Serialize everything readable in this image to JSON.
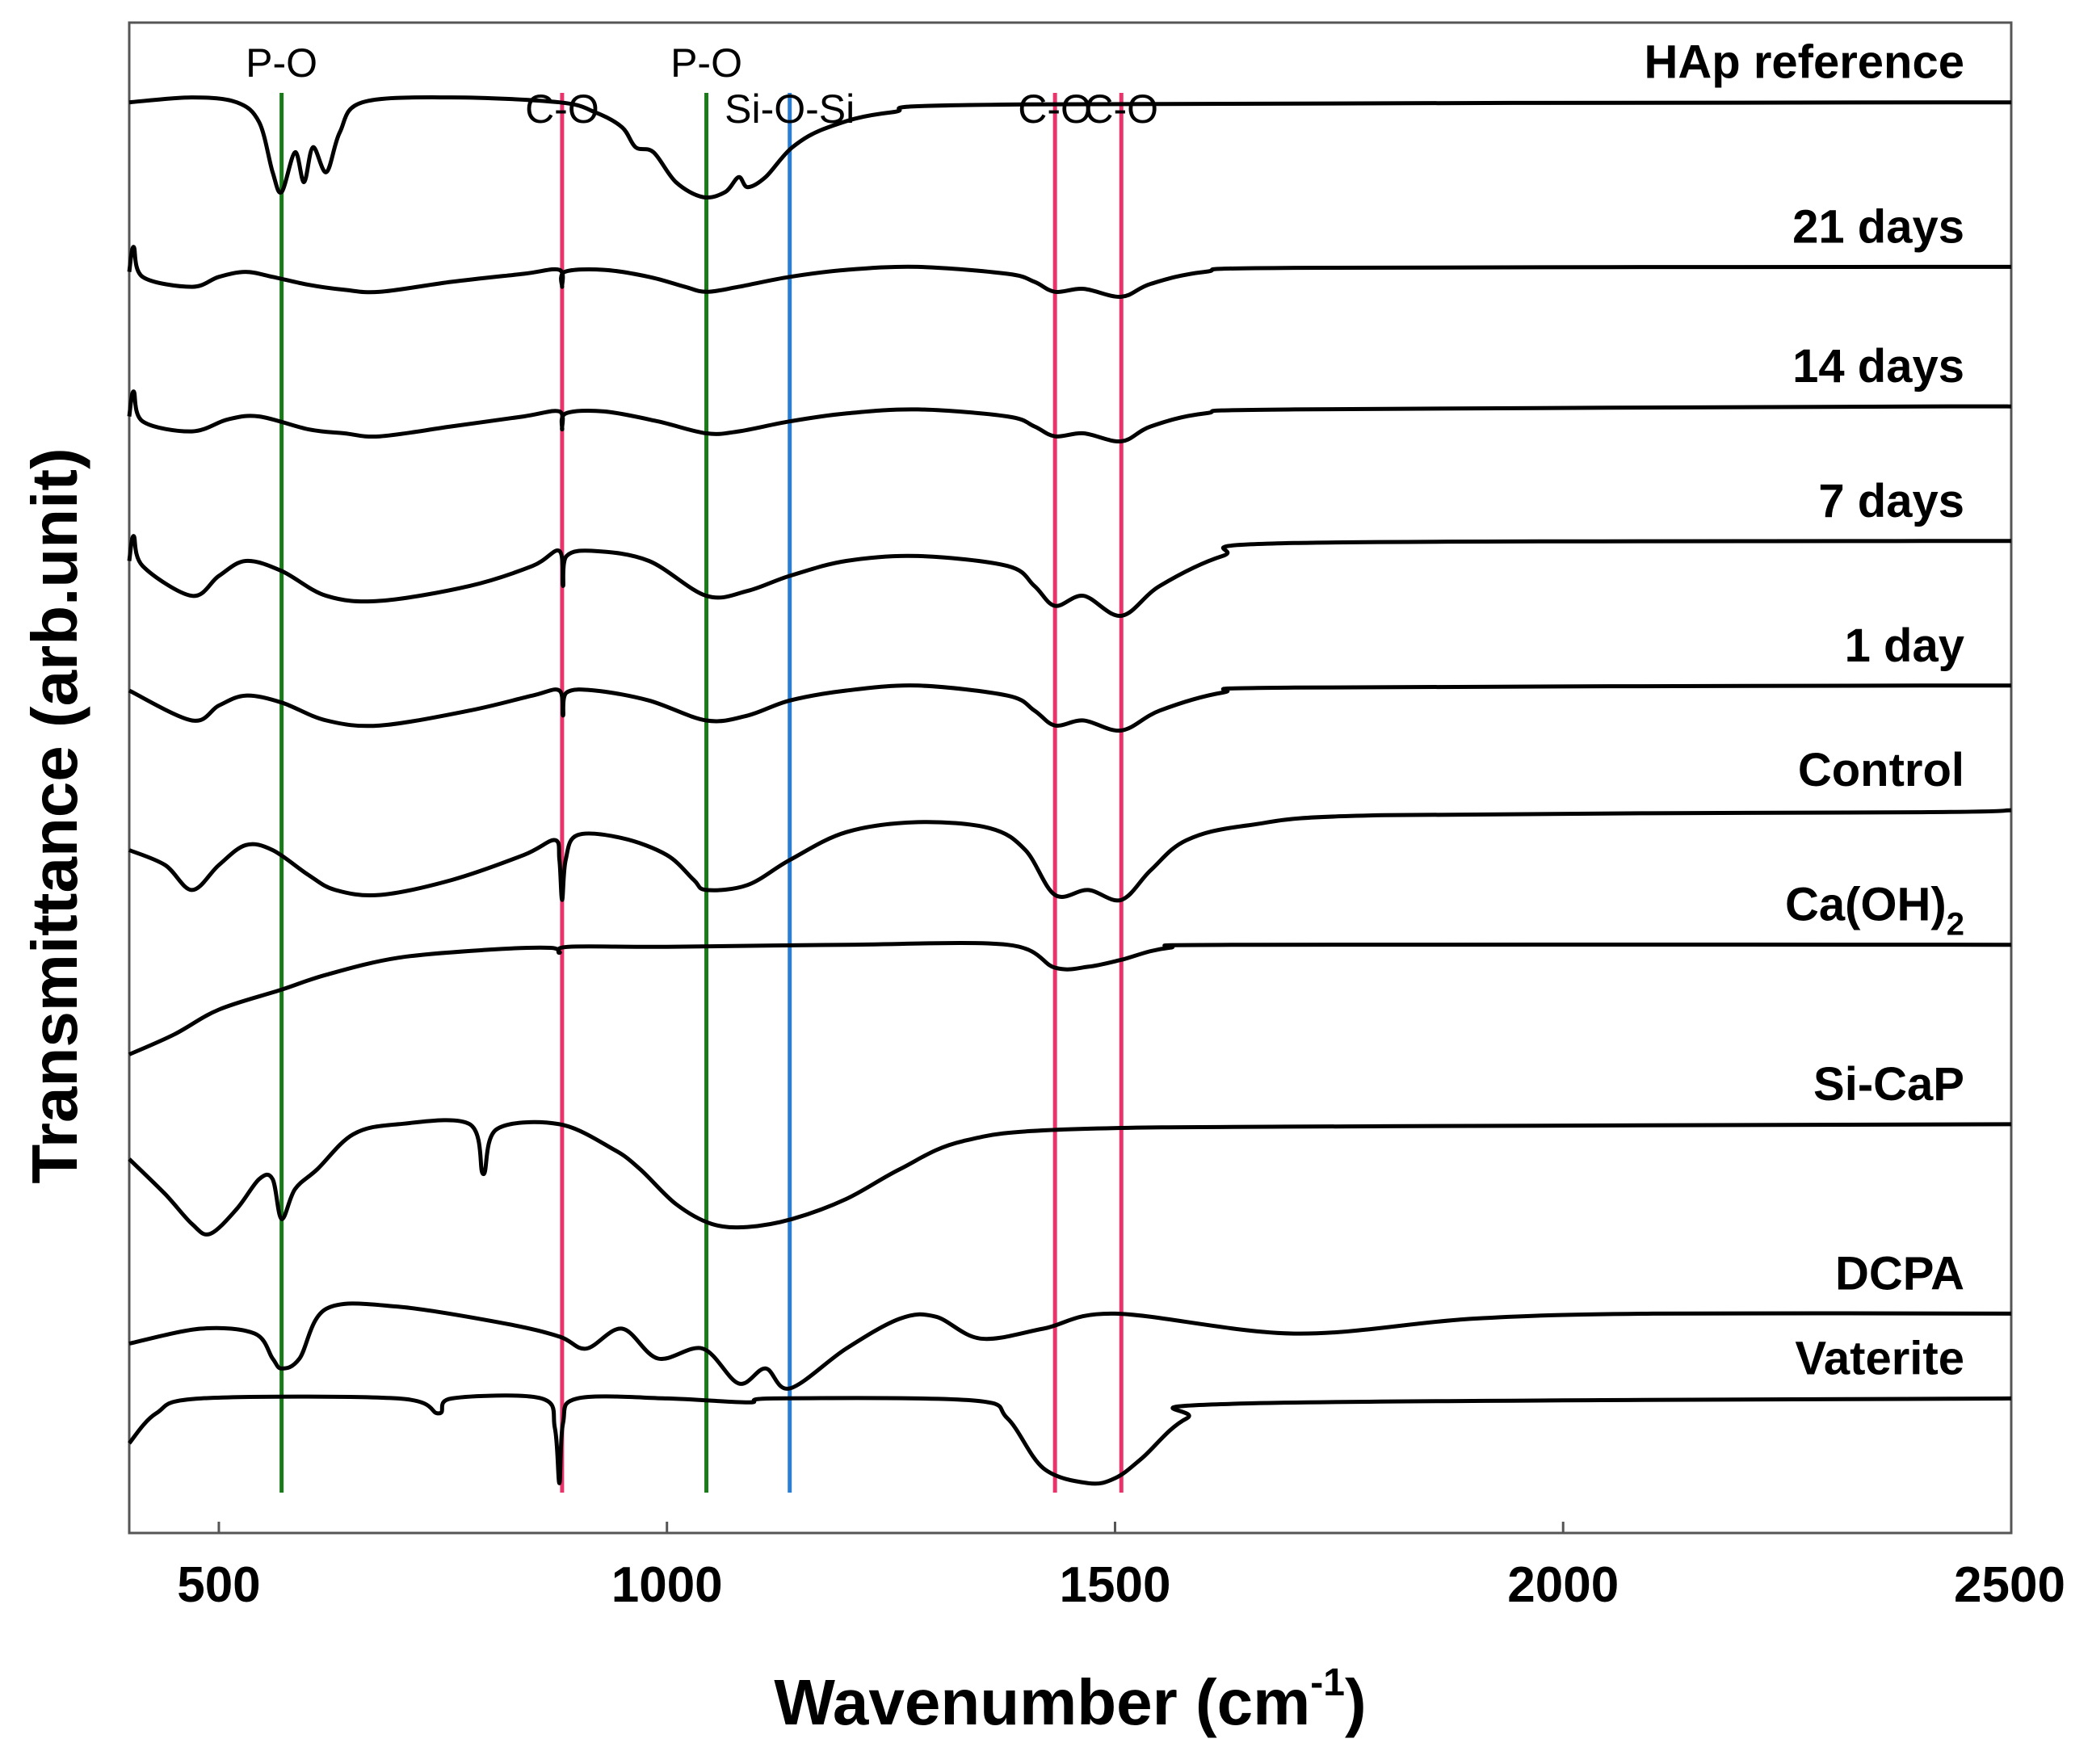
{
  "chart_data": {
    "type": "line",
    "title": "",
    "subtitle": "",
    "xlabel": "Wavenumber (cm",
    "xlabel_superscript": "-1",
    "xlabel_suffix": ")",
    "ylabel": "Transmittance (arb.unit)",
    "xlim": [
      400,
      2500
    ],
    "xticks": [
      500,
      1000,
      1500,
      2000,
      2500
    ],
    "y_units": "arbitrary, offset stacked",
    "grid": false,
    "reference_lines": [
      {
        "label": "P-O",
        "x": 570,
        "color": "#1a7a1a"
      },
      {
        "label": "C-O",
        "x": 883,
        "color": "#e8336b"
      },
      {
        "label": "P-O",
        "x": 1044,
        "color": "#1a7a1a"
      },
      {
        "label": "Si-O-Si",
        "x": 1137,
        "color": "#2a7fd4"
      },
      {
        "label": "C-O",
        "x": 1433,
        "color": "#e8336b"
      },
      {
        "label": "C-O",
        "x": 1507,
        "color": "#e8336b"
      }
    ],
    "series": [
      {
        "name": "HAp reference",
        "label_sub": "",
        "baseline": 13.8,
        "points": [
          [
            400,
            13.8
          ],
          [
            470,
            13.85
          ],
          [
            520,
            13.8
          ],
          [
            545,
            13.6
          ],
          [
            560,
            13.1
          ],
          [
            570,
            12.9
          ],
          [
            585,
            13.3
          ],
          [
            595,
            13.0
          ],
          [
            605,
            13.35
          ],
          [
            620,
            13.1
          ],
          [
            635,
            13.5
          ],
          [
            660,
            13.8
          ],
          [
            760,
            13.85
          ],
          [
            880,
            13.8
          ],
          [
            920,
            13.7
          ],
          [
            950,
            13.55
          ],
          [
            965,
            13.35
          ],
          [
            985,
            13.3
          ],
          [
            1010,
            13.0
          ],
          [
            1040,
            12.85
          ],
          [
            1065,
            12.9
          ],
          [
            1080,
            13.05
          ],
          [
            1090,
            12.95
          ],
          [
            1110,
            13.05
          ],
          [
            1140,
            13.35
          ],
          [
            1180,
            13.55
          ],
          [
            1250,
            13.7
          ],
          [
            1400,
            13.78
          ],
          [
            2500,
            13.8
          ]
        ]
      },
      {
        "name": "21 days",
        "label_sub": "",
        "baseline": 12.15,
        "points": [
          [
            400,
            12.1
          ],
          [
            405,
            12.35
          ],
          [
            415,
            12.05
          ],
          [
            470,
            11.95
          ],
          [
            500,
            12.05
          ],
          [
            530,
            12.1
          ],
          [
            560,
            12.05
          ],
          [
            600,
            11.97
          ],
          [
            640,
            11.92
          ],
          [
            680,
            11.9
          ],
          [
            760,
            12.0
          ],
          [
            840,
            12.08
          ],
          [
            880,
            12.12
          ],
          [
            883,
            11.95
          ],
          [
            886,
            12.1
          ],
          [
            930,
            12.12
          ],
          [
            980,
            12.05
          ],
          [
            1020,
            11.95
          ],
          [
            1044,
            11.9
          ],
          [
            1080,
            11.95
          ],
          [
            1137,
            12.05
          ],
          [
            1200,
            12.12
          ],
          [
            1280,
            12.15
          ],
          [
            1380,
            12.08
          ],
          [
            1410,
            12.0
          ],
          [
            1433,
            11.9
          ],
          [
            1465,
            11.93
          ],
          [
            1507,
            11.85
          ],
          [
            1540,
            11.98
          ],
          [
            1600,
            12.1
          ],
          [
            1700,
            12.14
          ],
          [
            2400,
            12.15
          ],
          [
            2500,
            12.15
          ]
        ]
      },
      {
        "name": "14 days",
        "label_sub": "",
        "baseline": 10.75,
        "points": [
          [
            400,
            10.65
          ],
          [
            405,
            10.9
          ],
          [
            415,
            10.6
          ],
          [
            470,
            10.5
          ],
          [
            510,
            10.62
          ],
          [
            545,
            10.65
          ],
          [
            600,
            10.52
          ],
          [
            640,
            10.48
          ],
          [
            680,
            10.45
          ],
          [
            760,
            10.55
          ],
          [
            840,
            10.65
          ],
          [
            880,
            10.7
          ],
          [
            883,
            10.52
          ],
          [
            887,
            10.68
          ],
          [
            930,
            10.7
          ],
          [
            990,
            10.6
          ],
          [
            1044,
            10.48
          ],
          [
            1080,
            10.5
          ],
          [
            1137,
            10.6
          ],
          [
            1200,
            10.68
          ],
          [
            1280,
            10.72
          ],
          [
            1380,
            10.65
          ],
          [
            1410,
            10.55
          ],
          [
            1433,
            10.45
          ],
          [
            1465,
            10.48
          ],
          [
            1507,
            10.4
          ],
          [
            1540,
            10.55
          ],
          [
            1600,
            10.68
          ],
          [
            1700,
            10.72
          ],
          [
            2400,
            10.75
          ],
          [
            2500,
            10.75
          ]
        ]
      },
      {
        "name": "7 days",
        "label_sub": "",
        "baseline": 9.4,
        "points": [
          [
            400,
            9.2
          ],
          [
            405,
            9.45
          ],
          [
            415,
            9.15
          ],
          [
            470,
            8.85
          ],
          [
            500,
            9.05
          ],
          [
            530,
            9.2
          ],
          [
            570,
            9.1
          ],
          [
            620,
            8.85
          ],
          [
            680,
            8.8
          ],
          [
            780,
            8.95
          ],
          [
            850,
            9.15
          ],
          [
            880,
            9.3
          ],
          [
            884,
            8.95
          ],
          [
            888,
            9.25
          ],
          [
            920,
            9.3
          ],
          [
            980,
            9.2
          ],
          [
            1044,
            8.85
          ],
          [
            1090,
            8.9
          ],
          [
            1137,
            9.05
          ],
          [
            1200,
            9.2
          ],
          [
            1280,
            9.25
          ],
          [
            1380,
            9.15
          ],
          [
            1410,
            8.95
          ],
          [
            1433,
            8.75
          ],
          [
            1465,
            8.85
          ],
          [
            1507,
            8.65
          ],
          [
            1550,
            8.95
          ],
          [
            1620,
            9.25
          ],
          [
            1700,
            9.38
          ],
          [
            2400,
            9.4
          ],
          [
            2500,
            9.4
          ]
        ]
      },
      {
        "name": "1 day",
        "label_sub": "",
        "baseline": 7.95,
        "points": [
          [
            400,
            7.9
          ],
          [
            470,
            7.6
          ],
          [
            500,
            7.75
          ],
          [
            530,
            7.85
          ],
          [
            570,
            7.78
          ],
          [
            620,
            7.6
          ],
          [
            680,
            7.55
          ],
          [
            780,
            7.7
          ],
          [
            850,
            7.85
          ],
          [
            880,
            7.9
          ],
          [
            884,
            7.65
          ],
          [
            888,
            7.88
          ],
          [
            920,
            7.9
          ],
          [
            980,
            7.8
          ],
          [
            1044,
            7.6
          ],
          [
            1090,
            7.65
          ],
          [
            1137,
            7.8
          ],
          [
            1200,
            7.9
          ],
          [
            1280,
            7.95
          ],
          [
            1380,
            7.85
          ],
          [
            1410,
            7.7
          ],
          [
            1433,
            7.55
          ],
          [
            1465,
            7.6
          ],
          [
            1507,
            7.5
          ],
          [
            1550,
            7.7
          ],
          [
            1620,
            7.88
          ],
          [
            1700,
            7.93
          ],
          [
            2400,
            7.95
          ],
          [
            2500,
            7.95
          ]
        ]
      },
      {
        "name": "Control",
        "label_sub": "",
        "baseline": 6.7,
        "points": [
          [
            400,
            6.3
          ],
          [
            440,
            6.15
          ],
          [
            470,
            5.9
          ],
          [
            500,
            6.15
          ],
          [
            530,
            6.35
          ],
          [
            560,
            6.3
          ],
          [
            600,
            6.05
          ],
          [
            630,
            5.9
          ],
          [
            680,
            5.85
          ],
          [
            760,
            6.0
          ],
          [
            840,
            6.25
          ],
          [
            875,
            6.4
          ],
          [
            880,
            6.2
          ],
          [
            883,
            5.8
          ],
          [
            887,
            6.2
          ],
          [
            900,
            6.45
          ],
          [
            950,
            6.42
          ],
          [
            1000,
            6.25
          ],
          [
            1030,
            6.0
          ],
          [
            1044,
            5.9
          ],
          [
            1090,
            5.95
          ],
          [
            1137,
            6.2
          ],
          [
            1200,
            6.48
          ],
          [
            1280,
            6.58
          ],
          [
            1360,
            6.52
          ],
          [
            1400,
            6.3
          ],
          [
            1433,
            5.85
          ],
          [
            1470,
            5.9
          ],
          [
            1507,
            5.8
          ],
          [
            1540,
            6.1
          ],
          [
            1580,
            6.4
          ],
          [
            1650,
            6.55
          ],
          [
            1800,
            6.65
          ],
          [
            2400,
            6.68
          ],
          [
            2500,
            6.7
          ]
        ]
      },
      {
        "name": "Ca(OH)",
        "label_sub": "2",
        "baseline": 5.35,
        "points": [
          [
            400,
            4.25
          ],
          [
            450,
            4.45
          ],
          [
            500,
            4.7
          ],
          [
            570,
            4.9
          ],
          [
            620,
            5.05
          ],
          [
            700,
            5.22
          ],
          [
            800,
            5.3
          ],
          [
            870,
            5.32
          ],
          [
            880,
            5.27
          ],
          [
            890,
            5.33
          ],
          [
            1000,
            5.33
          ],
          [
            1200,
            5.35
          ],
          [
            1380,
            5.35
          ],
          [
            1433,
            5.12
          ],
          [
            1470,
            5.13
          ],
          [
            1507,
            5.2
          ],
          [
            1560,
            5.32
          ],
          [
            1650,
            5.35
          ],
          [
            2500,
            5.35
          ]
        ]
      },
      {
        "name": "Si-CaP",
        "label_sub": "",
        "baseline": 3.55,
        "points": [
          [
            400,
            3.2
          ],
          [
            440,
            2.85
          ],
          [
            470,
            2.55
          ],
          [
            490,
            2.45
          ],
          [
            520,
            2.7
          ],
          [
            545,
            3.0
          ],
          [
            560,
            3.0
          ],
          [
            570,
            2.6
          ],
          [
            585,
            2.9
          ],
          [
            610,
            3.1
          ],
          [
            650,
            3.45
          ],
          [
            700,
            3.55
          ],
          [
            780,
            3.55
          ],
          [
            795,
            3.05
          ],
          [
            810,
            3.5
          ],
          [
            880,
            3.55
          ],
          [
            940,
            3.3
          ],
          [
            970,
            3.1
          ],
          [
            1010,
            2.75
          ],
          [
            1050,
            2.55
          ],
          [
            1090,
            2.52
          ],
          [
            1140,
            2.6
          ],
          [
            1200,
            2.8
          ],
          [
            1260,
            3.1
          ],
          [
            1330,
            3.38
          ],
          [
            1450,
            3.5
          ],
          [
            1800,
            3.53
          ],
          [
            2500,
            3.55
          ]
        ]
      },
      {
        "name": "DCPA",
        "label_sub": "",
        "baseline": 1.65,
        "points": [
          [
            400,
            1.35
          ],
          [
            480,
            1.5
          ],
          [
            540,
            1.45
          ],
          [
            560,
            1.2
          ],
          [
            570,
            1.1
          ],
          [
            590,
            1.2
          ],
          [
            620,
            1.7
          ],
          [
            700,
            1.72
          ],
          [
            820,
            1.55
          ],
          [
            880,
            1.42
          ],
          [
            910,
            1.3
          ],
          [
            950,
            1.5
          ],
          [
            990,
            1.2
          ],
          [
            1040,
            1.3
          ],
          [
            1080,
            0.95
          ],
          [
            1110,
            1.1
          ],
          [
            1137,
            0.9
          ],
          [
            1200,
            1.3
          ],
          [
            1260,
            1.6
          ],
          [
            1300,
            1.62
          ],
          [
            1350,
            1.4
          ],
          [
            1420,
            1.5
          ],
          [
            1500,
            1.65
          ],
          [
            1700,
            1.45
          ],
          [
            1900,
            1.6
          ],
          [
            2100,
            1.65
          ],
          [
            2500,
            1.65
          ]
        ]
      },
      {
        "name": "Vaterite",
        "label_sub": "",
        "baseline": 0.8,
        "points": [
          [
            400,
            0.35
          ],
          [
            430,
            0.65
          ],
          [
            480,
            0.8
          ],
          [
            700,
            0.8
          ],
          [
            745,
            0.65
          ],
          [
            760,
            0.8
          ],
          [
            860,
            0.8
          ],
          [
            875,
            0.5
          ],
          [
            880,
            -0.05
          ],
          [
            884,
            0.55
          ],
          [
            900,
            0.8
          ],
          [
            1000,
            0.8
          ],
          [
            1090,
            0.76
          ],
          [
            1120,
            0.8
          ],
          [
            1340,
            0.78
          ],
          [
            1380,
            0.6
          ],
          [
            1420,
            0.1
          ],
          [
            1470,
            -0.05
          ],
          [
            1500,
            0.0
          ],
          [
            1530,
            0.2
          ],
          [
            1580,
            0.6
          ],
          [
            1650,
            0.75
          ],
          [
            2500,
            0.8
          ]
        ]
      }
    ]
  }
}
